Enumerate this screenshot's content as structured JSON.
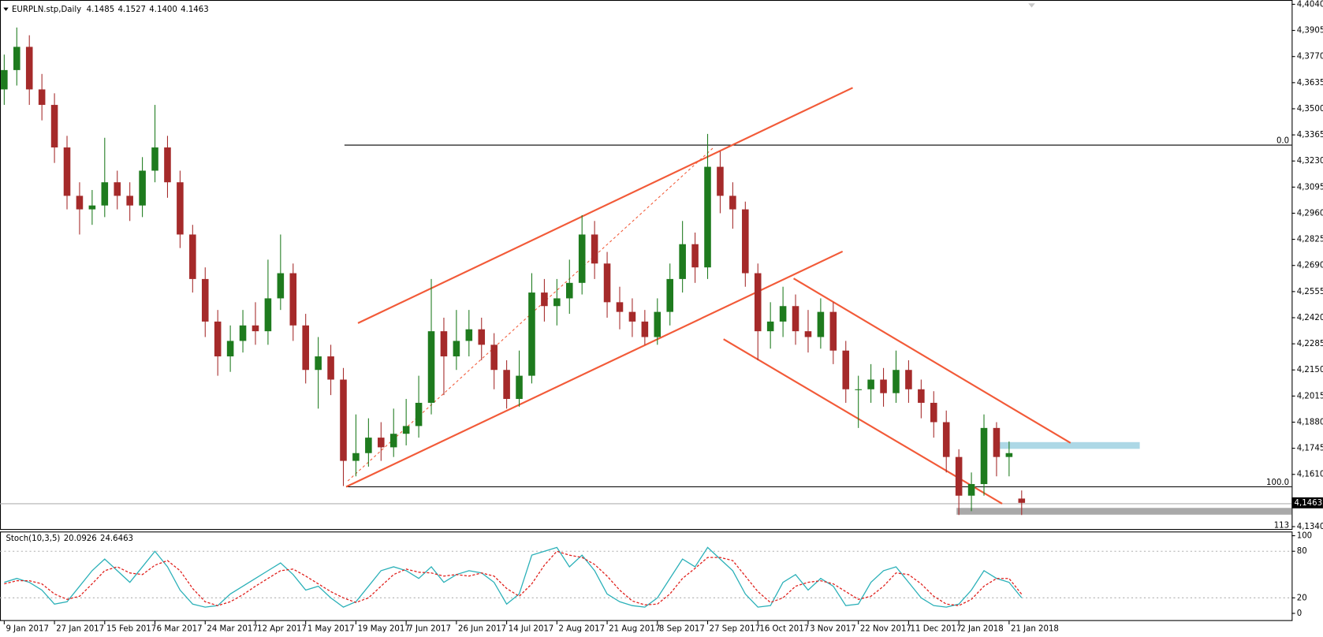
{
  "chart_data": [
    {
      "type": "candlestick",
      "title": "EURPLN.stp,Daily",
      "ohlc_labels": [
        "4.1485",
        "4.1527",
        "4.1400",
        "4.1463"
      ],
      "last_price_label": "4,1463",
      "annotations": [
        "0.0",
        "100.0",
        "113"
      ],
      "up_color": "#1e7b1e",
      "down_color": "#a52a2a",
      "grid": false,
      "xlim": [
        -0.336,
        102.5
      ],
      "ylim": [
        4.13277,
        4.40622
      ],
      "xticks": [
        {
          "value": 0,
          "label": "9 Jan 2017"
        },
        {
          "value": 4,
          "label": "27 Jan 2017"
        },
        {
          "value": 8,
          "label": "15 Feb 2017"
        },
        {
          "value": 12,
          "label": "6 Mar 2017"
        },
        {
          "value": 16,
          "label": "24 Mar 2017"
        },
        {
          "value": 20,
          "label": "12 Apr 2017"
        },
        {
          "value": 24,
          "label": "1 May 2017"
        },
        {
          "value": 28,
          "label": "19 May 2017"
        },
        {
          "value": 32,
          "label": "7 Jun 2017"
        },
        {
          "value": 36,
          "label": "26 Jun 2017"
        },
        {
          "value": 40,
          "label": "14 Jul 2017"
        },
        {
          "value": 44,
          "label": "2 Aug 2017"
        },
        {
          "value": 48,
          "label": "21 Aug 2017"
        },
        {
          "value": 52,
          "label": "8 Sep 2017"
        },
        {
          "value": 56,
          "label": "27 Sep 2017"
        },
        {
          "value": 60,
          "label": "16 Oct 2017"
        },
        {
          "value": 64,
          "label": "3 Nov 2017"
        },
        {
          "value": 68,
          "label": "22 Nov 2017"
        },
        {
          "value": 72,
          "label": "11 Dec 2017"
        },
        {
          "value": 76,
          "label": "2 Jan 2018"
        },
        {
          "value": 80,
          "label": "21 Jan 2018"
        }
      ],
      "yticks": [
        {
          "value": 4.404,
          "label": "4,4040"
        },
        {
          "value": 4.3905,
          "label": "4,3905"
        },
        {
          "value": 4.377,
          "label": "4,3770"
        },
        {
          "value": 4.3635,
          "label": "4,3635"
        },
        {
          "value": 4.35,
          "label": "4,3500"
        },
        {
          "value": 4.3365,
          "label": "4,3365"
        },
        {
          "value": 4.323,
          "label": "4,3230"
        },
        {
          "value": 4.3095,
          "label": "4,3095"
        },
        {
          "value": 4.296,
          "label": "4,2960"
        },
        {
          "value": 4.2825,
          "label": "4,2825"
        },
        {
          "value": 4.269,
          "label": "4,2690"
        },
        {
          "value": 4.2555,
          "label": "4,2555"
        },
        {
          "value": 4.242,
          "label": "4,2420"
        },
        {
          "value": 4.2285,
          "label": "4,2285"
        },
        {
          "value": 4.215,
          "label": "4,2150"
        },
        {
          "value": 4.2015,
          "label": "4,2015"
        },
        {
          "value": 4.188,
          "label": "4,1880"
        },
        {
          "value": 4.1745,
          "label": "4,1745"
        },
        {
          "value": 4.161,
          "label": "4,1610"
        },
        {
          "value": 4.134,
          "label": "4,1340"
        }
      ],
      "x": [
        0,
        1,
        2,
        3,
        4,
        5,
        6,
        7,
        8,
        9,
        10,
        11,
        12,
        13,
        14,
        15,
        16,
        17,
        18,
        19,
        20,
        21,
        22,
        23,
        24,
        25,
        26,
        27,
        28,
        29,
        30,
        31,
        32,
        33,
        34,
        35,
        36,
        37,
        38,
        39,
        40,
        41,
        42,
        43,
        44,
        45,
        46,
        47,
        48,
        49,
        50,
        51,
        52,
        53,
        54,
        55,
        56,
        57,
        58,
        59,
        60,
        61,
        62,
        63,
        64,
        65,
        66,
        67,
        68,
        69,
        70,
        71,
        72,
        73,
        74,
        75,
        76,
        77,
        78,
        79,
        80,
        81
      ],
      "open": [
        4.36,
        4.37,
        4.382,
        4.36,
        4.352,
        4.33,
        4.305,
        4.298,
        4.3,
        4.312,
        4.305,
        4.3,
        4.318,
        4.33,
        4.312,
        4.285,
        4.262,
        4.24,
        4.222,
        4.23,
        4.238,
        4.235,
        4.252,
        4.265,
        4.238,
        4.215,
        4.222,
        4.21,
        4.168,
        4.172,
        4.18,
        4.175,
        4.182,
        4.186,
        4.198,
        4.235,
        4.222,
        4.23,
        4.236,
        4.228,
        4.215,
        4.2,
        4.212,
        4.255,
        4.248,
        4.252,
        4.26,
        4.285,
        4.27,
        4.25,
        4.245,
        4.24,
        4.232,
        4.245,
        4.262,
        4.28,
        4.268,
        4.32,
        4.305,
        4.298,
        4.265,
        4.235,
        4.24,
        4.248,
        4.235,
        4.232,
        4.245,
        4.225,
        4.205,
        4.205,
        4.21,
        4.203,
        4.215,
        4.205,
        4.198,
        4.188,
        4.17,
        4.15,
        4.156,
        4.185,
        4.17,
        4.1485
      ],
      "high": [
        4.378,
        4.392,
        4.388,
        4.368,
        4.358,
        4.336,
        4.312,
        4.308,
        4.335,
        4.318,
        4.312,
        4.325,
        4.352,
        4.336,
        4.318,
        4.29,
        4.268,
        4.246,
        4.238,
        4.246,
        4.25,
        4.272,
        4.285,
        4.27,
        4.244,
        4.232,
        4.228,
        4.216,
        4.192,
        4.19,
        4.188,
        4.195,
        4.2,
        4.212,
        4.262,
        4.242,
        4.246,
        4.246,
        4.242,
        4.234,
        4.22,
        4.225,
        4.265,
        4.262,
        4.262,
        4.272,
        4.295,
        4.292,
        4.276,
        4.258,
        4.252,
        4.246,
        4.252,
        4.27,
        4.292,
        4.286,
        4.337,
        4.328,
        4.312,
        4.302,
        4.27,
        4.25,
        4.258,
        4.254,
        4.246,
        4.252,
        4.25,
        4.23,
        4.212,
        4.218,
        4.216,
        4.225,
        4.22,
        4.21,
        4.204,
        4.194,
        4.174,
        4.162,
        4.192,
        4.188,
        4.178,
        4.1527
      ],
      "low": [
        4.352,
        4.362,
        4.352,
        4.344,
        4.322,
        4.298,
        4.285,
        4.29,
        4.294,
        4.298,
        4.292,
        4.294,
        4.312,
        4.304,
        4.278,
        4.255,
        4.232,
        4.212,
        4.214,
        4.224,
        4.228,
        4.228,
        4.246,
        4.23,
        4.208,
        4.195,
        4.202,
        4.155,
        4.16,
        4.165,
        4.168,
        4.17,
        4.176,
        4.18,
        4.192,
        4.202,
        4.215,
        4.222,
        4.22,
        4.205,
        4.195,
        4.196,
        4.208,
        4.24,
        4.238,
        4.244,
        4.254,
        4.262,
        4.242,
        4.236,
        4.232,
        4.228,
        4.228,
        4.238,
        4.255,
        4.26,
        4.262,
        4.296,
        4.288,
        4.258,
        4.22,
        4.226,
        4.232,
        4.228,
        4.224,
        4.226,
        4.218,
        4.198,
        4.185,
        4.198,
        4.196,
        4.198,
        4.198,
        4.19,
        4.18,
        4.162,
        4.14,
        4.142,
        4.15,
        4.16,
        4.16,
        4.14
      ],
      "close": [
        4.37,
        4.382,
        4.36,
        4.352,
        4.33,
        4.305,
        4.298,
        4.3,
        4.312,
        4.305,
        4.3,
        4.318,
        4.33,
        4.312,
        4.285,
        4.262,
        4.24,
        4.222,
        4.23,
        4.238,
        4.235,
        4.252,
        4.265,
        4.238,
        4.215,
        4.222,
        4.21,
        4.168,
        4.172,
        4.18,
        4.175,
        4.182,
        4.186,
        4.198,
        4.235,
        4.222,
        4.23,
        4.236,
        4.228,
        4.215,
        4.2,
        4.212,
        4.255,
        4.248,
        4.252,
        4.26,
        4.285,
        4.27,
        4.25,
        4.245,
        4.24,
        4.232,
        4.245,
        4.262,
        4.28,
        4.268,
        4.32,
        4.305,
        4.298,
        4.265,
        4.235,
        4.24,
        4.248,
        4.235,
        4.232,
        4.245,
        4.225,
        4.205,
        4.205,
        4.21,
        4.203,
        4.215,
        4.205,
        4.198,
        4.188,
        4.17,
        4.15,
        4.156,
        4.185,
        4.17,
        4.172,
        4.1463
      ]
    },
    {
      "type": "line",
      "title": "Stoch(10,3,5)",
      "xlim": [
        -0.336,
        102.5
      ],
      "ylim": [
        -8.7,
        105.4
      ],
      "yticks": [
        100,
        80,
        20,
        0
      ],
      "levels": [
        80,
        20
      ],
      "x": [
        0,
        1,
        2,
        3,
        4,
        5,
        6,
        7,
        8,
        9,
        10,
        11,
        12,
        13,
        14,
        15,
        16,
        17,
        18,
        19,
        20,
        21,
        22,
        23,
        24,
        25,
        26,
        27,
        28,
        29,
        30,
        31,
        32,
        33,
        34,
        35,
        36,
        37,
        38,
        39,
        40,
        41,
        42,
        43,
        44,
        45,
        46,
        47,
        48,
        49,
        50,
        51,
        52,
        53,
        54,
        55,
        56,
        57,
        58,
        59,
        60,
        61,
        62,
        63,
        64,
        65,
        66,
        67,
        68,
        69,
        70,
        71,
        72,
        73,
        74,
        75,
        76,
        77,
        78,
        79,
        80,
        81
      ],
      "series": [
        {
          "color": "#2ab0b8",
          "style": "solid",
          "values": [
            40,
            45,
            40,
            30,
            12,
            15,
            35,
            55,
            70,
            55,
            40,
            60,
            80,
            60,
            30,
            12,
            8,
            10,
            25,
            35,
            45,
            55,
            65,
            50,
            30,
            35,
            20,
            8,
            15,
            35,
            55,
            60,
            55,
            45,
            60,
            40,
            50,
            55,
            52,
            40,
            12,
            25,
            75,
            80,
            85,
            60,
            75,
            55,
            25,
            15,
            10,
            8,
            20,
            45,
            70,
            60,
            85,
            70,
            55,
            25,
            8,
            10,
            40,
            50,
            30,
            45,
            35,
            10,
            12,
            40,
            55,
            60,
            40,
            20,
            10,
            8,
            12,
            30,
            55,
            45,
            40,
            20.0926
          ]
        },
        {
          "color": "#e0201c",
          "style": "dashed",
          "values": [
            38,
            42,
            42,
            38,
            25,
            18,
            22,
            38,
            55,
            60,
            52,
            50,
            62,
            68,
            55,
            32,
            15,
            10,
            15,
            24,
            35,
            45,
            55,
            57,
            48,
            38,
            28,
            20,
            14,
            20,
            35,
            50,
            57,
            53,
            52,
            48,
            50,
            48,
            52,
            48,
            32,
            22,
            38,
            62,
            80,
            75,
            72,
            63,
            48,
            30,
            16,
            11,
            12,
            25,
            45,
            58,
            72,
            72,
            68,
            48,
            28,
            14,
            20,
            35,
            40,
            42,
            38,
            28,
            18,
            22,
            35,
            52,
            50,
            38,
            22,
            12,
            10,
            18,
            35,
            45,
            45,
            24.6463
          ]
        }
      ]
    }
  ]
}
